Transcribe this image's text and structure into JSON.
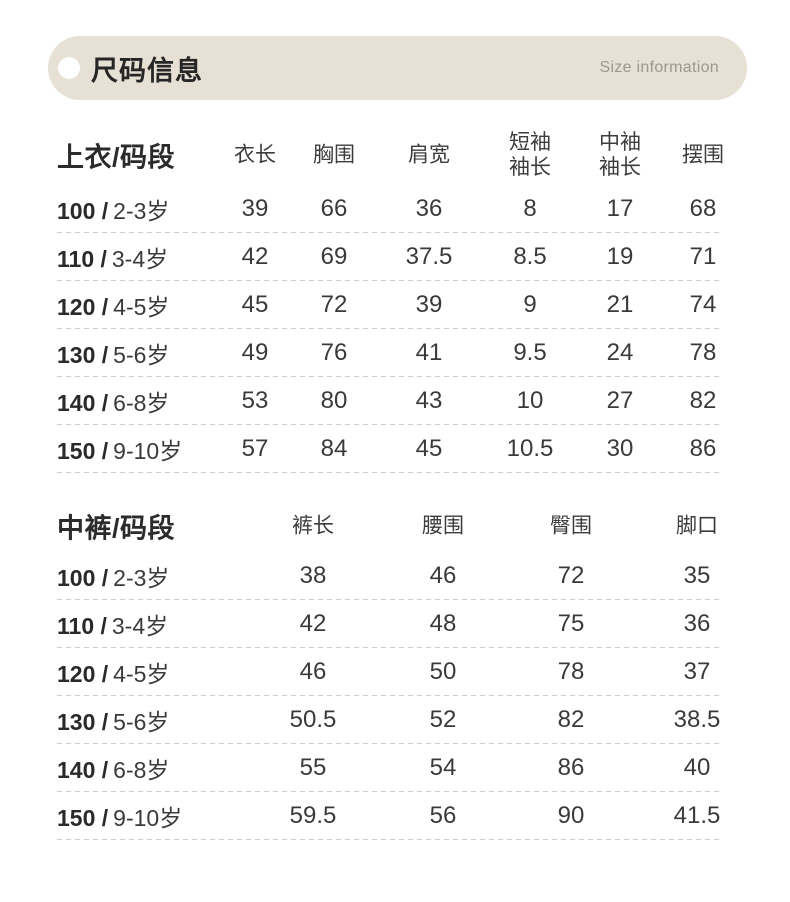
{
  "colors": {
    "header_bar_bg": "#e6e0d5",
    "header_dot": "#ffffff",
    "title_text": "#262626",
    "subtitle_text": "#9d978c",
    "body_text": "#3a3a3a",
    "bold_text": "#2a2a2a",
    "dash_line": "#cfcfcf",
    "page_bg": "#ffffff"
  },
  "header": {
    "title": "尺码信息",
    "subtitle": "Size information"
  },
  "tables": [
    {
      "name": "上衣/码段",
      "columns": [
        "衣长",
        "胸围",
        "肩宽",
        "短袖\n袖长",
        "中袖\n袖长",
        "摆围"
      ],
      "rows": [
        {
          "size": "100 /",
          "age": "2-3岁",
          "values": [
            "39",
            "66",
            "36",
            "8",
            "17",
            "68"
          ]
        },
        {
          "size": "110 /",
          "age": "3-4岁",
          "values": [
            "42",
            "69",
            "37.5",
            "8.5",
            "19",
            "71"
          ]
        },
        {
          "size": "120 /",
          "age": "4-5岁",
          "values": [
            "45",
            "72",
            "39",
            "9",
            "21",
            "74"
          ]
        },
        {
          "size": "130 /",
          "age": "5-6岁",
          "values": [
            "49",
            "76",
            "41",
            "9.5",
            "24",
            "78"
          ]
        },
        {
          "size": "140 /",
          "age": "6-8岁",
          "values": [
            "53",
            "80",
            "43",
            "10",
            "27",
            "82"
          ]
        },
        {
          "size": "150 /",
          "age": "9-10岁",
          "values": [
            "57",
            "84",
            "45",
            "10.5",
            "30",
            "86"
          ]
        }
      ]
    },
    {
      "name": "中裤/码段",
      "columns": [
        "裤长",
        "腰围",
        "臀围",
        "脚口"
      ],
      "rows": [
        {
          "size": "100 /",
          "age": "2-3岁",
          "values": [
            "38",
            "46",
            "72",
            "35"
          ]
        },
        {
          "size": "110 /",
          "age": "3-4岁",
          "values": [
            "42",
            "48",
            "75",
            "36"
          ]
        },
        {
          "size": "120 /",
          "age": "4-5岁",
          "values": [
            "46",
            "50",
            "78",
            "37"
          ]
        },
        {
          "size": "130 /",
          "age": "5-6岁",
          "values": [
            "50.5",
            "52",
            "82",
            "38.5"
          ]
        },
        {
          "size": "140 /",
          "age": "6-8岁",
          "values": [
            "55",
            "54",
            "86",
            "40"
          ]
        },
        {
          "size": "150 /",
          "age": "9-10岁",
          "values": [
            "59.5",
            "56",
            "90",
            "41.5"
          ]
        }
      ]
    }
  ],
  "chart_data": [
    {
      "type": "table",
      "title": "上衣/码段",
      "columns": [
        "码段",
        "衣长",
        "胸围",
        "肩宽",
        "短袖袖长",
        "中袖袖长",
        "摆围"
      ],
      "rows": [
        [
          "100 / 2-3岁",
          39,
          66,
          36,
          8,
          17,
          68
        ],
        [
          "110 / 3-4岁",
          42,
          69,
          37.5,
          8.5,
          19,
          71
        ],
        [
          "120 / 4-5岁",
          45,
          72,
          39,
          9,
          21,
          74
        ],
        [
          "130 / 5-6岁",
          49,
          76,
          41,
          9.5,
          24,
          78
        ],
        [
          "140 / 6-8岁",
          53,
          80,
          43,
          10,
          27,
          82
        ],
        [
          "150 / 9-10岁",
          57,
          84,
          45,
          10.5,
          30,
          86
        ]
      ]
    },
    {
      "type": "table",
      "title": "中裤/码段",
      "columns": [
        "码段",
        "裤长",
        "腰围",
        "臀围",
        "脚口"
      ],
      "rows": [
        [
          "100 / 2-3岁",
          38,
          46,
          72,
          35
        ],
        [
          "110 / 3-4岁",
          42,
          48,
          75,
          36
        ],
        [
          "120 / 4-5岁",
          46,
          50,
          78,
          37
        ],
        [
          "130 / 5-6岁",
          50.5,
          52,
          82,
          38.5
        ],
        [
          "140 / 6-8岁",
          55,
          54,
          86,
          40
        ],
        [
          "150 / 9-10岁",
          59.5,
          56,
          90,
          41.5
        ]
      ]
    }
  ]
}
